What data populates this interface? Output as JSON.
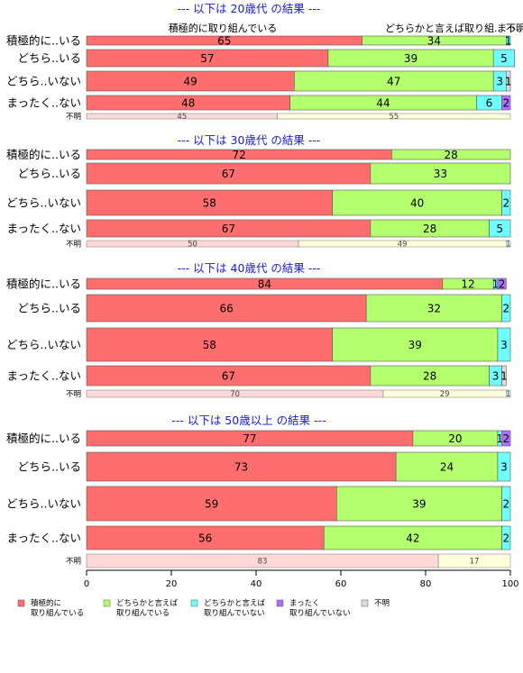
{
  "chart_data": {
    "type": "bar",
    "orientation": "horizontal",
    "stacked": true,
    "xlim": [
      0,
      100
    ],
    "xticks": [
      "0",
      "20",
      "40",
      "60",
      "80",
      "100"
    ],
    "grid": false,
    "legend_position": "bottom",
    "header_labels": [
      "積極的に取り組んでいる",
      "どちらかと言えば取り組..",
      "まっ..",
      "不明"
    ],
    "series": [
      {
        "name": "積極的に\n取り組んでいる",
        "color": "#ff6e6e"
      },
      {
        "name": "どちらかと言えば\n取り組んでいる",
        "color": "#b4ff6e"
      },
      {
        "name": "どちらかと言えば\n取り組んでいない",
        "color": "#6effff"
      },
      {
        "name": "まったく\n取り組んでいない",
        "color": "#b46eff"
      },
      {
        "name": "不明",
        "color": "#dddddd"
      }
    ],
    "unknown_colors": [
      "#ffd8d8",
      "#ffffd8",
      "#d8ffff"
    ],
    "panels": [
      {
        "title": "--- 以下は 20歳代 の結果 ---",
        "rows": [
          {
            "label": "積極的に..いる",
            "values": [
              65,
              34,
              1,
              0,
              0
            ],
            "shown": [
              "65",
              "34",
              "1",
              "",
              ""
            ]
          },
          {
            "label": "どちら..いる",
            "values": [
              57,
              39,
              5,
              0,
              0
            ],
            "shown": [
              "57",
              "39",
              "5",
              "",
              ""
            ]
          },
          {
            "label": "どちら..いない",
            "values": [
              49,
              47,
              3,
              0,
              1
            ],
            "shown": [
              "49",
              "47",
              "3",
              "",
              "1"
            ]
          },
          {
            "label": "まったく..ない",
            "values": [
              48,
              44,
              6,
              2,
              0
            ],
            "shown": [
              "48",
              "44",
              "6",
              "2",
              ""
            ]
          }
        ],
        "unknown": {
          "label": "不明",
          "values": [
            45,
            55,
            0
          ],
          "shown": [
            "45",
            "55",
            ""
          ]
        }
      },
      {
        "title": "--- 以下は 30歳代 の結果 ---",
        "rows": [
          {
            "label": "積極的に..いる",
            "values": [
              72,
              28,
              0,
              0,
              0
            ],
            "shown": [
              "72",
              "28",
              "",
              "",
              ""
            ]
          },
          {
            "label": "どちら..いる",
            "values": [
              67,
              33,
              0,
              0,
              0
            ],
            "shown": [
              "67",
              "33",
              "",
              "",
              ""
            ]
          },
          {
            "label": "どちら..いない",
            "values": [
              58,
              40,
              2,
              0,
              0
            ],
            "shown": [
              "58",
              "40",
              "2",
              "",
              ""
            ]
          },
          {
            "label": "まったく..ない",
            "values": [
              67,
              28,
              5,
              0,
              0
            ],
            "shown": [
              "67",
              "28",
              "5",
              "",
              ""
            ]
          }
        ],
        "unknown": {
          "label": "不明",
          "values": [
            50,
            49,
            1
          ],
          "shown": [
            "50",
            "49",
            "1"
          ]
        }
      },
      {
        "title": "--- 以下は 40歳代 の結果 ---",
        "rows": [
          {
            "label": "積極的に..いる",
            "values": [
              84,
              12,
              1,
              2,
              0
            ],
            "shown": [
              "84",
              "12",
              "1",
              "2",
              ""
            ]
          },
          {
            "label": "どちら..いる",
            "values": [
              66,
              32,
              2,
              0,
              0
            ],
            "shown": [
              "66",
              "32",
              "2",
              "",
              ""
            ]
          },
          {
            "label": "どちら..いない",
            "values": [
              58,
              39,
              3,
              0,
              0
            ],
            "shown": [
              "58",
              "39",
              "3",
              "",
              ""
            ]
          },
          {
            "label": "まったく..ない",
            "values": [
              67,
              28,
              3,
              0,
              1
            ],
            "shown": [
              "67",
              "28",
              "3",
              "",
              "1"
            ]
          }
        ],
        "unknown": {
          "label": "不明",
          "values": [
            70,
            29,
            1
          ],
          "shown": [
            "70",
            "29",
            "1"
          ]
        }
      },
      {
        "title": "--- 以下は 50歳以上 の結果 ---",
        "rows": [
          {
            "label": "積極的に..いる",
            "values": [
              77,
              20,
              1,
              2,
              0
            ],
            "shown": [
              "77",
              "20",
              "1",
              "2",
              ""
            ]
          },
          {
            "label": "どちら..いる",
            "values": [
              73,
              24,
              3,
              0,
              0
            ],
            "shown": [
              "73",
              "24",
              "3",
              "",
              ""
            ]
          },
          {
            "label": "どちら..いない",
            "values": [
              59,
              39,
              2,
              0,
              0
            ],
            "shown": [
              "59",
              "39",
              "2",
              "",
              ""
            ]
          },
          {
            "label": "まったく..ない",
            "values": [
              56,
              42,
              2,
              0,
              0
            ],
            "shown": [
              "56",
              "42",
              "2",
              "",
              ""
            ]
          }
        ],
        "unknown": {
          "label": "不明",
          "values": [
            83,
            17,
            0
          ],
          "shown": [
            "83",
            "17",
            ""
          ]
        }
      }
    ]
  }
}
